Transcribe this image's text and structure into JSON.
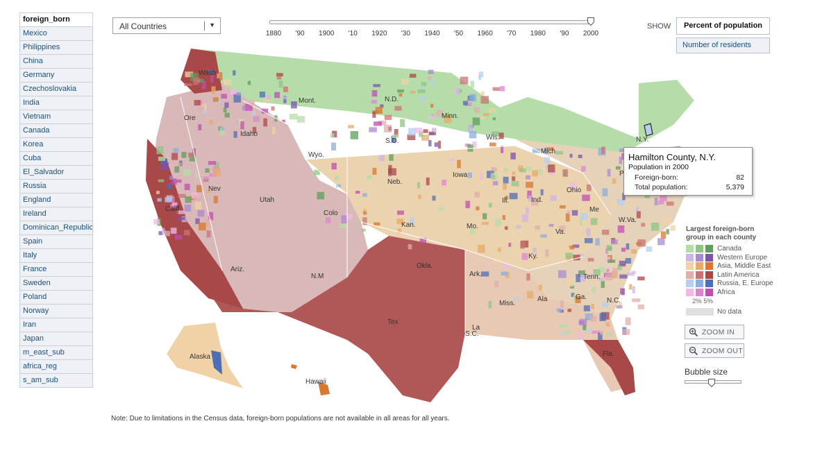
{
  "sidebar": {
    "header": "foreign_born",
    "items": [
      "Mexico",
      "Philippines",
      "China",
      "Germany",
      "Czechoslovakia",
      "India",
      "Vietnam",
      "Canada",
      "Korea",
      "Cuba",
      "El_Salvador",
      "Russia",
      "England",
      "Ireland",
      "Dominican_Republic",
      "Spain",
      "Italy",
      "France",
      "Sweden",
      "Poland",
      "Norway",
      "Iran",
      "Japan",
      "m_east_sub",
      "africa_reg",
      "s_am_sub"
    ]
  },
  "country_select": {
    "value": "All Countries"
  },
  "timeline": {
    "ticks": [
      "1880",
      "'90",
      "1900",
      "'10",
      "1920",
      "'30",
      "1940",
      "'50",
      "1960",
      "'70",
      "1980",
      "'90",
      "2000"
    ],
    "selected": "2000"
  },
  "show": {
    "label": "SHOW",
    "percent_label": "Percent of population",
    "number_label": "Number of residents"
  },
  "map": {
    "state_labels": [
      "Wash",
      "Ore",
      "Idaho",
      "Mont.",
      "Wyo.",
      "N.D.",
      "S.D.",
      "Neb.",
      "Minn.",
      "Wis.",
      "Iowa",
      "Mich",
      "Nev",
      "Calif",
      "Utah",
      "Colo",
      "Kan.",
      "Mo.",
      "Ill.",
      "Ind.",
      "Ohio",
      "N.Y.",
      "Me",
      "W.Va.",
      "Va.",
      "Ky.",
      "Tenn.",
      "N.C.",
      "S.C.",
      "Ariz.",
      "N.M",
      "Okla.",
      "Ark.",
      "Miss.",
      "Ala",
      "Ga.",
      "Tex",
      "La",
      "Fla.",
      "Alaska",
      "Hawaii",
      "P"
    ]
  },
  "tooltip": {
    "title": "Hamilton County, N.Y.",
    "subtitle": "Population in 2000",
    "rows": [
      {
        "label": "Foreign-born:",
        "value": "82"
      },
      {
        "label": "Total population:",
        "value": "5,379"
      }
    ]
  },
  "legend": {
    "title": "Largest foreign-born group in each county",
    "groups": [
      {
        "label": "Canada",
        "colors": [
          "#b5dca9",
          "#8fc487",
          "#5f9e5c"
        ]
      },
      {
        "label": "Western Europe",
        "colors": [
          "#cdb6e3",
          "#a98bd0",
          "#7a55ae"
        ]
      },
      {
        "label": "Asia, Middle East",
        "colors": [
          "#f0d2a6",
          "#e5ab6a",
          "#d8772f"
        ]
      },
      {
        "label": "Latin America",
        "colors": [
          "#e2aeae",
          "#c97474",
          "#a94848"
        ]
      },
      {
        "label": "Russia, E. Europe",
        "colors": [
          "#b7cfee",
          "#8aaedd",
          "#4e6eb6"
        ]
      },
      {
        "label": "Africa",
        "colors": [
          "#f0b8e6",
          "#de85d0",
          "#c04db0"
        ]
      }
    ],
    "pct_labels": "2% 5%",
    "no_data_label": "No data"
  },
  "zoom": {
    "in_label": "ZOOM IN",
    "out_label": "ZOOM OUT"
  },
  "bubble": {
    "label": "Bubble size"
  },
  "note": "Note: Due to limitations in the Census data, foreign-born  populations are not available in all areas for all years."
}
